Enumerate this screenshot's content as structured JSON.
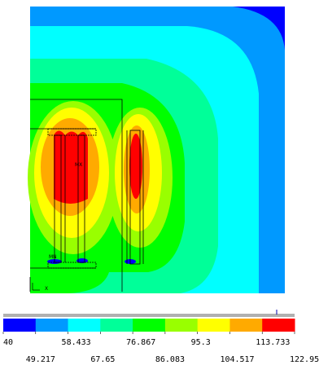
{
  "contour_plot": {
    "colors": [
      "#0000ff",
      "#0099ff",
      "#00ffff",
      "#00ff99",
      "#00ff00",
      "#99ff00",
      "#ffff00",
      "#ffaa00",
      "#ff0000"
    ],
    "markers": {
      "mx": "MX",
      "mn": "MN",
      "axis_x": "X"
    }
  },
  "legend": {
    "colors": [
      "#0000ff",
      "#0099ff",
      "#00ffff",
      "#00ff99",
      "#00ff00",
      "#99ff00",
      "#ffff00",
      "#ffaa00",
      "#ff0000"
    ],
    "ticks_top": [
      "40",
      "58.433",
      "76.867",
      "95.3",
      "113.733"
    ],
    "ticks_bottom": [
      "49.217",
      "67.65",
      "86.083",
      "104.517",
      "122.95"
    ]
  }
}
